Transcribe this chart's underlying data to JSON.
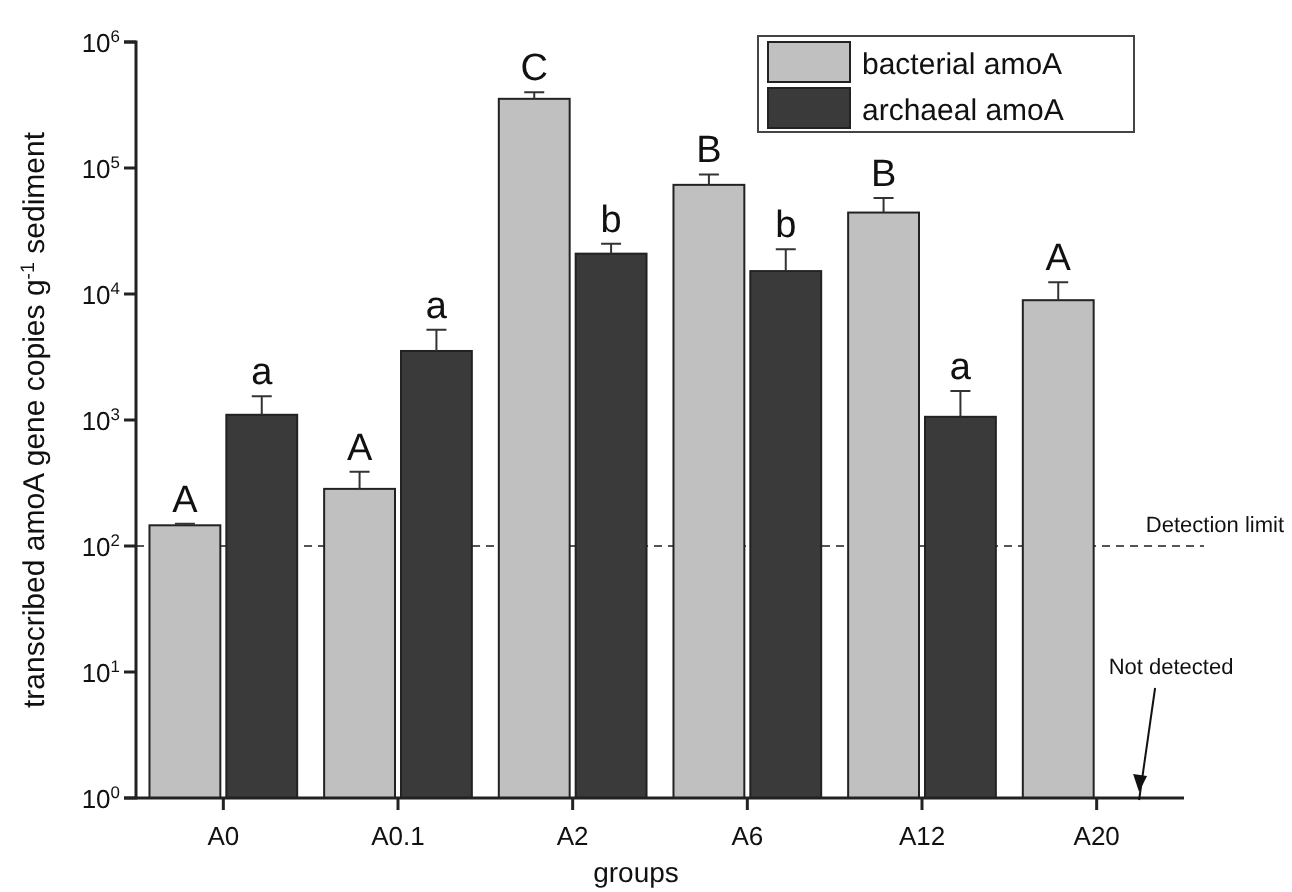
{
  "chart_data": {
    "type": "bar",
    "xlabel": "groups",
    "ylabel": "transcribed amoA gene  copies g$^{-1}$ sediment",
    "categories": [
      "A0",
      "A0.1",
      "A2",
      "A6",
      "A12",
      "A20"
    ],
    "series": [
      {
        "name": "bacterial amoA",
        "color": "#c0c0c0",
        "values": [
          146,
          284,
          354000,
          73500,
          44300,
          8930
        ],
        "errors": [
          [
            146,
            150
          ],
          [
            284,
            388
          ],
          [
            354000,
            400000
          ],
          [
            73500,
            89000
          ],
          [
            44300,
            57900
          ],
          [
            8930,
            12400
          ]
        ]
      },
      {
        "name": "archaeal amoA",
        "color": "#3a3a3a",
        "values": [
          1100,
          3530,
          20900,
          15200,
          1060,
          null
        ],
        "errors": [
          [
            1100,
            1540
          ],
          [
            3530,
            5200
          ],
          [
            20900,
            25000
          ],
          [
            15200,
            22700
          ],
          [
            1060,
            1700
          ],
          null
        ]
      }
    ],
    "log": true,
    "ylim": [
      1,
      1000000
    ],
    "yticks": [
      {
        "value": 1,
        "label": "10$^{0}$"
      },
      {
        "value": 10,
        "label": "10$^{1}$"
      },
      {
        "value": 100,
        "label": "10$^{2}$"
      },
      {
        "value": 1000,
        "label": "10$^{3}$"
      },
      {
        "value": 10000,
        "label": "10$^{4}$"
      },
      {
        "value": 100000,
        "label": "10$^{5}$"
      },
      {
        "value": 1000000,
        "label": "10$^{6}$"
      }
    ],
    "ref_lines": [
      {
        "axis": "y",
        "value": 100,
        "label": "Detection limit",
        "line_style": "dashed"
      }
    ],
    "annotations": [
      {
        "text": "A",
        "x": "A0",
        "y": 146
      },
      {
        "text": "a",
        "x": "A0",
        "y": 1100
      },
      {
        "text": "A",
        "x": "A0.1",
        "y": 284
      },
      {
        "text": "a",
        "x": "A0.1",
        "y": 3530
      },
      {
        "text": "C",
        "x": "A2",
        "y": 354000
      },
      {
        "text": "b",
        "x": "A2",
        "y": 20900
      },
      {
        "text": "B",
        "x": "A6",
        "y": 73500
      },
      {
        "text": "b",
        "x": "A6",
        "y": 15200
      },
      {
        "text": "B",
        "x": "A12",
        "y": 44300
      },
      {
        "text": "a",
        "x": "A12",
        "y": 1060
      },
      {
        "text": "A",
        "x": "A20",
        "y": 8930
      },
      "Not detected"
    ],
    "legend": "top right",
    "grid": false
  }
}
